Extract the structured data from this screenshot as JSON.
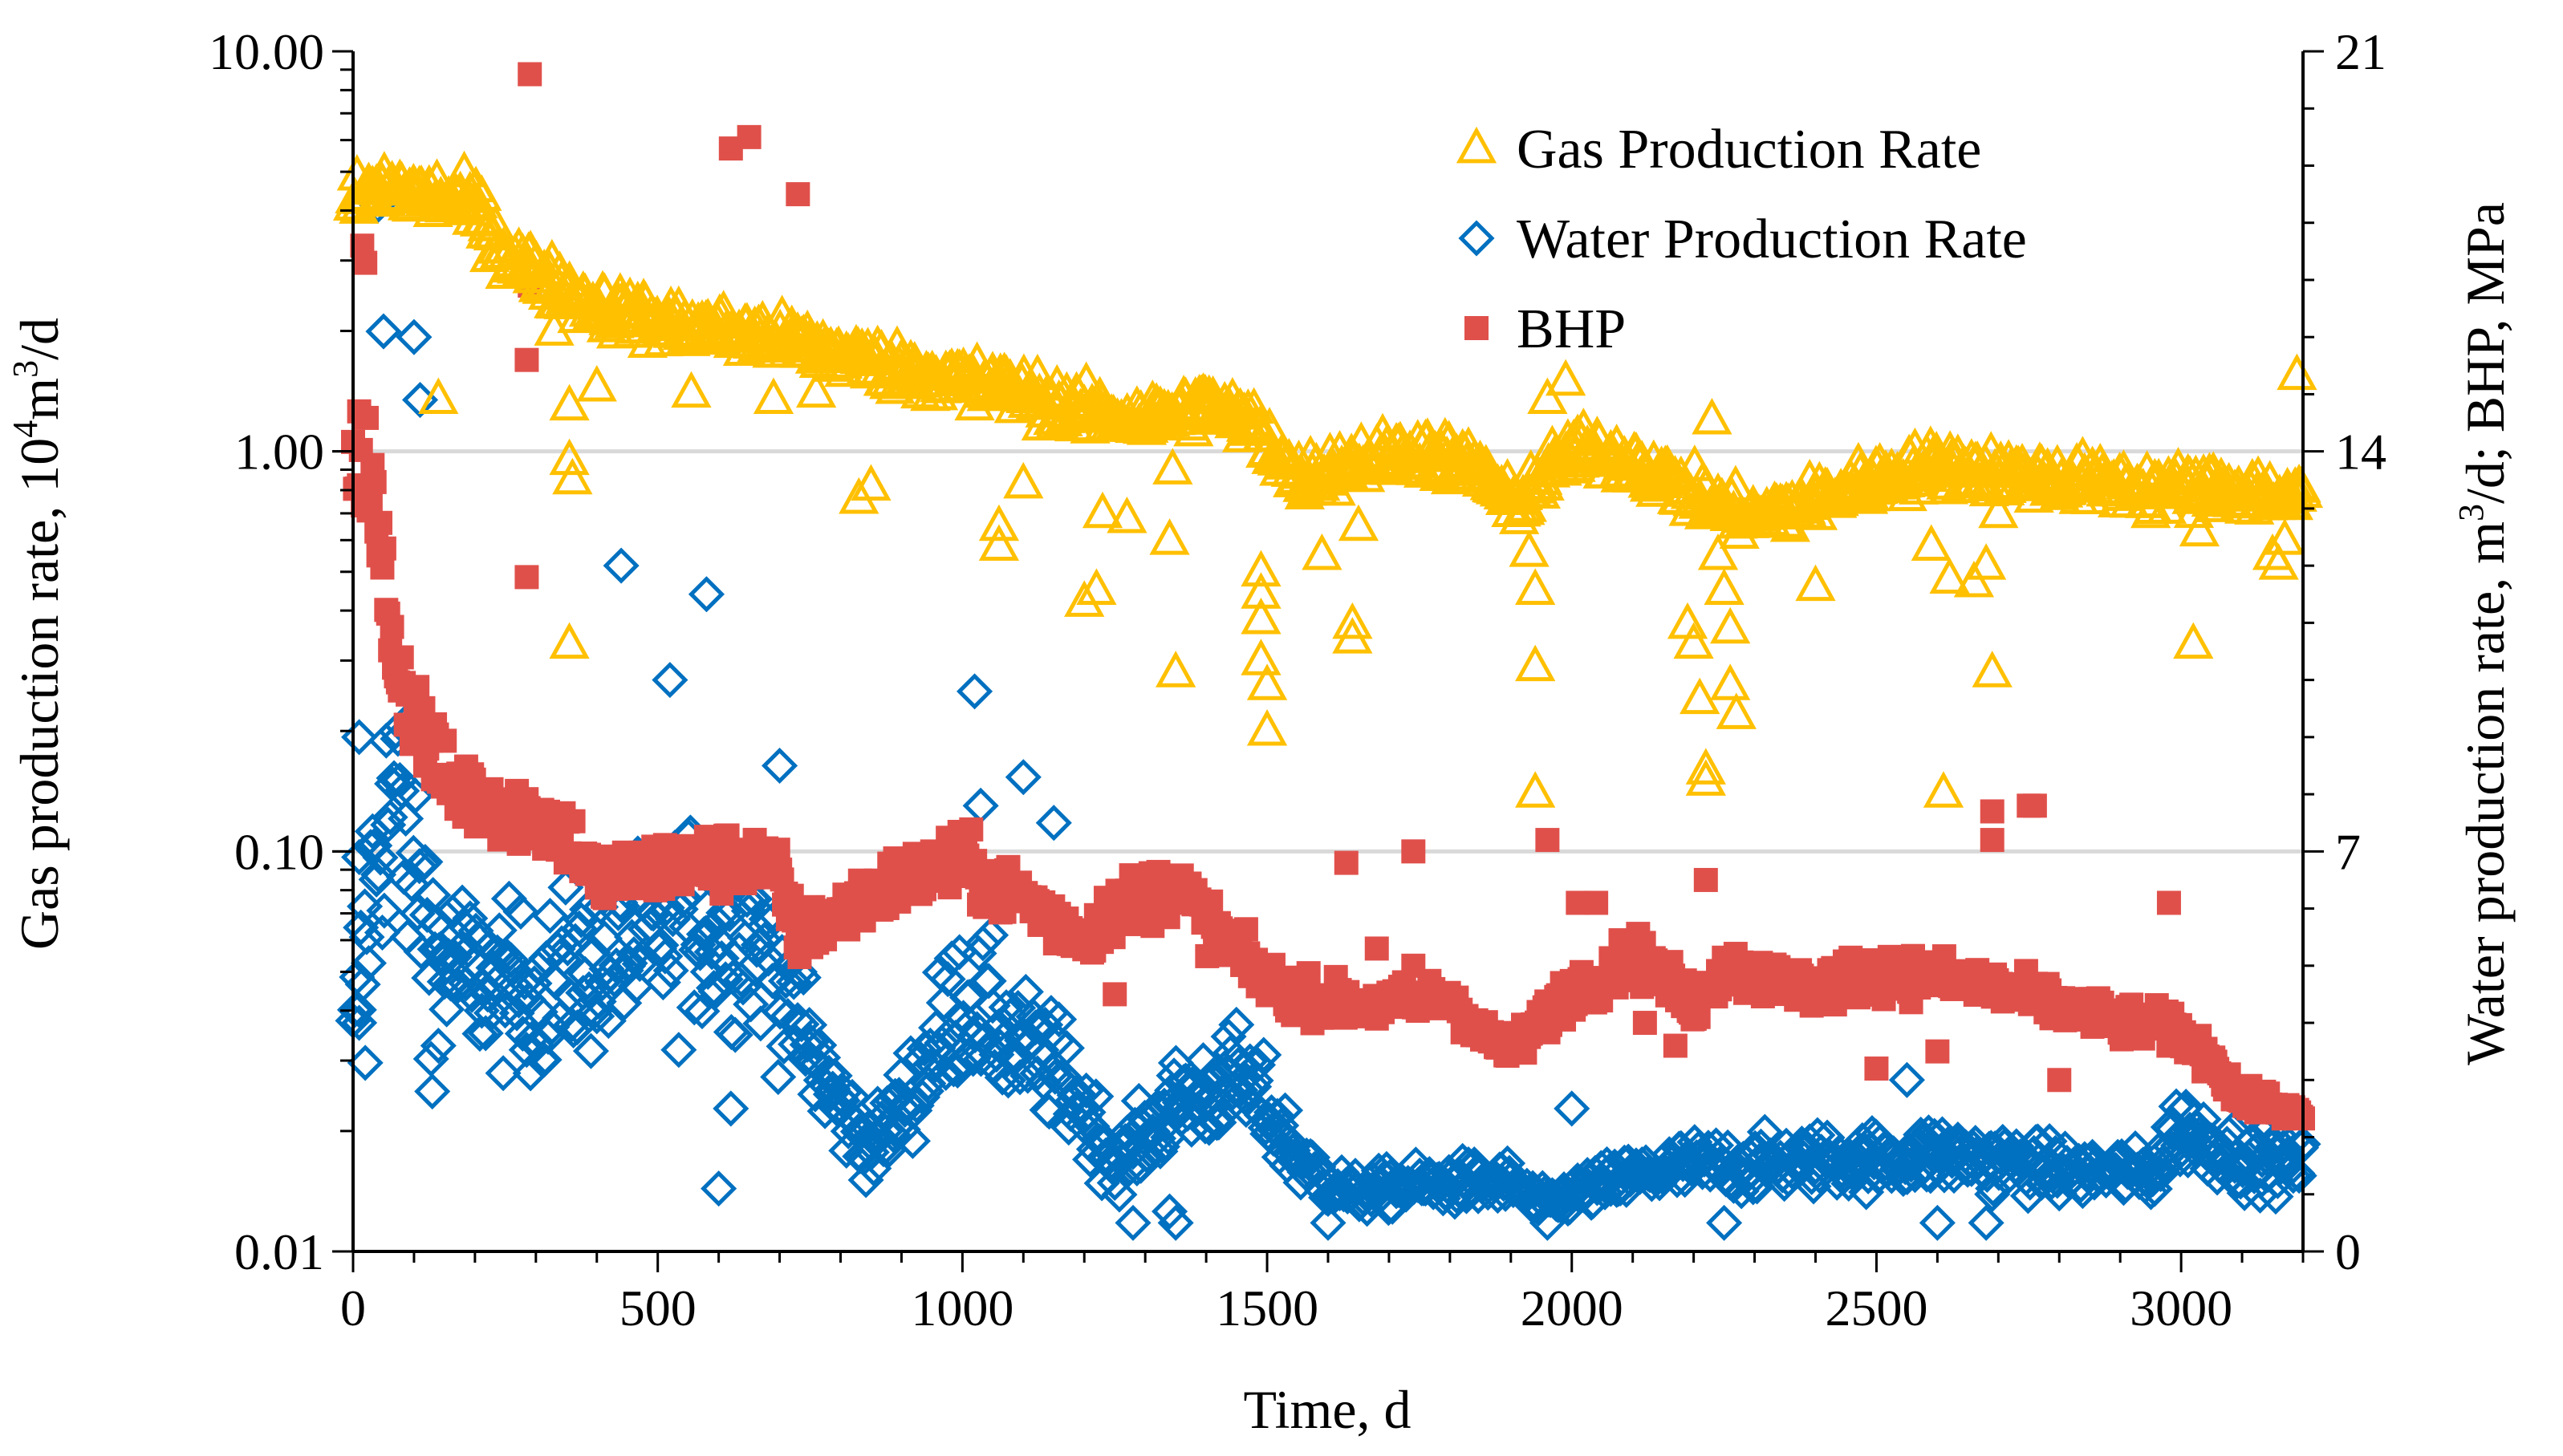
{
  "chart_data": {
    "type": "scatter",
    "xlabel": "Time, d",
    "ylabel_left": "Gas production rate, 10",
    "ylabel_left_sup": "4",
    "ylabel_left_suffix": "m",
    "ylabel_left_sup2": "3",
    "ylabel_left_end": "/d",
    "ylabel_right": "Water production rate, m",
    "ylabel_right_sup": "3",
    "ylabel_right_end": "/d; BHP, MPa",
    "xlim": [
      0,
      3200
    ],
    "x_ticks": [
      0,
      500,
      1000,
      1500,
      2000,
      2500,
      3000
    ],
    "x_tick_labels": [
      "0",
      "500",
      "1000",
      "1500",
      "2000",
      "2500",
      "3000"
    ],
    "left_axis": {
      "scale": "log",
      "ylim": [
        0.01,
        10
      ],
      "ticks": [
        0.01,
        0.1,
        1,
        10
      ],
      "tick_labels": [
        "0.01",
        "0.10",
        "1.00",
        "10.00"
      ]
    },
    "right_axis": {
      "scale": "linear",
      "ylim": [
        0,
        21
      ],
      "ticks": [
        0,
        7,
        14,
        21
      ],
      "tick_labels": [
        "0",
        "7",
        "14",
        "21"
      ]
    },
    "gridlines": [
      0.1,
      1
    ],
    "legend_position": "top-right",
    "series": [
      {
        "name": "Gas Production Rate",
        "axis": "left",
        "marker": "triangle-open",
        "color": "#FFC000",
        "trend": [
          [
            0,
            4.2
          ],
          [
            50,
            4.6
          ],
          [
            100,
            4.4
          ],
          [
            150,
            4.3
          ],
          [
            200,
            4.1
          ],
          [
            250,
            3.1
          ],
          [
            300,
            2.8
          ],
          [
            350,
            2.5
          ],
          [
            400,
            2.3
          ],
          [
            500,
            2.1
          ],
          [
            600,
            2.0
          ],
          [
            700,
            1.9
          ],
          [
            800,
            1.75
          ],
          [
            900,
            1.6
          ],
          [
            1000,
            1.5
          ],
          [
            1100,
            1.4
          ],
          [
            1200,
            1.25
          ],
          [
            1300,
            1.2
          ],
          [
            1400,
            1.3
          ],
          [
            1480,
            1.15
          ],
          [
            1550,
            0.85
          ],
          [
            1650,
            0.95
          ],
          [
            1750,
            1.0
          ],
          [
            1850,
            0.9
          ],
          [
            1900,
            0.72
          ],
          [
            1950,
            0.85
          ],
          [
            2000,
            1.0
          ],
          [
            2100,
            0.95
          ],
          [
            2200,
            0.78
          ],
          [
            2250,
            0.72
          ],
          [
            2300,
            0.68
          ],
          [
            2400,
            0.75
          ],
          [
            2500,
            0.85
          ],
          [
            2600,
            0.92
          ],
          [
            2700,
            0.88
          ],
          [
            2800,
            0.85
          ],
          [
            2900,
            0.82
          ],
          [
            3000,
            0.8
          ],
          [
            3100,
            0.8
          ],
          [
            3200,
            0.75
          ]
        ],
        "scatter_fraction": 0.09,
        "outliers": [
          [
            140,
            1.35
          ],
          [
            355,
            1.3
          ],
          [
            355,
            0.95
          ],
          [
            360,
            0.85
          ],
          [
            355,
            0.33
          ],
          [
            330,
            2.0
          ],
          [
            400,
            1.45
          ],
          [
            555,
            1.4
          ],
          [
            690,
            1.35
          ],
          [
            760,
            1.4
          ],
          [
            830,
            0.76
          ],
          [
            850,
            0.82
          ],
          [
            1020,
            1.3
          ],
          [
            1060,
            0.65
          ],
          [
            1060,
            0.58
          ],
          [
            1100,
            0.83
          ],
          [
            1200,
            0.42
          ],
          [
            1220,
            0.45
          ],
          [
            1230,
            0.7
          ],
          [
            1270,
            0.68
          ],
          [
            1340,
            0.6
          ],
          [
            1345,
            0.9
          ],
          [
            1350,
            0.28
          ],
          [
            1490,
            0.5
          ],
          [
            1490,
            0.44
          ],
          [
            1490,
            0.38
          ],
          [
            1490,
            0.3
          ],
          [
            1500,
            0.26
          ],
          [
            1500,
            0.2
          ],
          [
            1590,
            0.55
          ],
          [
            1640,
            0.37
          ],
          [
            1640,
            0.34
          ],
          [
            1650,
            0.65
          ],
          [
            1930,
            0.56
          ],
          [
            1940,
            0.45
          ],
          [
            1940,
            0.29
          ],
          [
            1940,
            0.14
          ],
          [
            1960,
            1.35
          ],
          [
            1990,
            1.5
          ],
          [
            2190,
            0.37
          ],
          [
            2200,
            0.33
          ],
          [
            2210,
            0.24
          ],
          [
            2220,
            0.16
          ],
          [
            2220,
            0.15
          ],
          [
            2230,
            1.2
          ],
          [
            2240,
            0.55
          ],
          [
            2250,
            0.45
          ],
          [
            2260,
            0.36
          ],
          [
            2260,
            0.26
          ],
          [
            2270,
            0.22
          ],
          [
            2400,
            0.46
          ],
          [
            2590,
            0.58
          ],
          [
            2610,
            0.14
          ],
          [
            2620,
            0.48
          ],
          [
            2660,
            0.47
          ],
          [
            2680,
            0.52
          ],
          [
            2690,
            0.28
          ],
          [
            2700,
            0.7
          ],
          [
            2950,
            0.7
          ],
          [
            3020,
            0.33
          ],
          [
            3030,
            0.63
          ],
          [
            3150,
            0.55
          ],
          [
            3160,
            0.52
          ],
          [
            3170,
            0.6
          ],
          [
            3190,
            1.55
          ]
        ]
      },
      {
        "name": "Water Production Rate",
        "axis": "right",
        "marker": "diamond-open",
        "color": "#0070C0",
        "trend": [
          [
            0,
            3.5
          ],
          [
            15,
            5.0
          ],
          [
            30,
            6.5
          ],
          [
            50,
            7.5
          ],
          [
            70,
            8.0
          ],
          [
            90,
            7.0
          ],
          [
            110,
            6.5
          ],
          [
            130,
            5.5
          ],
          [
            150,
            5.0
          ],
          [
            200,
            4.8
          ],
          [
            250,
            4.6
          ],
          [
            300,
            4.5
          ],
          [
            350,
            4.8
          ],
          [
            400,
            5.0
          ],
          [
            450,
            5.2
          ],
          [
            500,
            5.5
          ],
          [
            550,
            5.8
          ],
          [
            600,
            5.6
          ],
          [
            650,
            5.7
          ],
          [
            700,
            5.0
          ],
          [
            750,
            3.5
          ],
          [
            800,
            2.5
          ],
          [
            850,
            1.8
          ],
          [
            900,
            2.5
          ],
          [
            950,
            3.5
          ],
          [
            1000,
            4.5
          ],
          [
            1050,
            4.0
          ],
          [
            1100,
            3.5
          ],
          [
            1150,
            3.2
          ],
          [
            1200,
            2.5
          ],
          [
            1250,
            1.5
          ],
          [
            1300,
            2.0
          ],
          [
            1350,
            2.6
          ],
          [
            1400,
            2.8
          ],
          [
            1450,
            3.0
          ],
          [
            1500,
            2.5
          ],
          [
            1550,
            1.6
          ],
          [
            1600,
            1.2
          ],
          [
            1650,
            1.0
          ],
          [
            1700,
            1.1
          ],
          [
            1800,
            1.2
          ],
          [
            1900,
            1.2
          ],
          [
            1950,
            0.8
          ],
          [
            2000,
            1.0
          ],
          [
            2100,
            1.3
          ],
          [
            2200,
            1.5
          ],
          [
            2300,
            1.5
          ],
          [
            2400,
            1.6
          ],
          [
            2500,
            1.6
          ],
          [
            2600,
            1.7
          ],
          [
            2700,
            1.6
          ],
          [
            2800,
            1.4
          ],
          [
            2900,
            1.4
          ],
          [
            2950,
            1.3
          ],
          [
            3000,
            2.2
          ],
          [
            3100,
            1.6
          ],
          [
            3200,
            1.5
          ]
        ],
        "scatter_fraction": 0.3,
        "outliers": [
          [
            40,
            18.3
          ],
          [
            50,
            16.1
          ],
          [
            100,
            16.0
          ],
          [
            110,
            14.9
          ],
          [
            10,
            4.0
          ],
          [
            10,
            6.9
          ],
          [
            130,
            2.8
          ],
          [
            140,
            3.6
          ],
          [
            20,
            3.3
          ],
          [
            10,
            9.0
          ],
          [
            440,
            12.0
          ],
          [
            520,
            10.0
          ],
          [
            580,
            11.5
          ],
          [
            620,
            2.5
          ],
          [
            600,
            1.1
          ],
          [
            700,
            8.5
          ],
          [
            1020,
            9.8
          ],
          [
            1030,
            7.8
          ],
          [
            1100,
            8.3
          ],
          [
            1150,
            7.5
          ],
          [
            1250,
            1.2
          ],
          [
            1280,
            0.5
          ],
          [
            1340,
            0.7
          ],
          [
            1350,
            0.5
          ],
          [
            1600,
            0.5
          ],
          [
            1960,
            0.5
          ],
          [
            2000,
            2.5
          ],
          [
            2250,
            0.5
          ],
          [
            2600,
            0.5
          ],
          [
            2680,
            0.5
          ],
          [
            2690,
            1.0
          ],
          [
            2550,
            3.0
          ]
        ]
      },
      {
        "name": "BHP",
        "axis": "right",
        "marker": "square-filled",
        "color": "#E0504B",
        "trend": [
          [
            0,
            13.8
          ],
          [
            20,
            14.0
          ],
          [
            40,
            12.5
          ],
          [
            60,
            11.0
          ],
          [
            80,
            10.0
          ],
          [
            100,
            9.5
          ],
          [
            150,
            8.2
          ],
          [
            200,
            8.0
          ],
          [
            250,
            7.8
          ],
          [
            300,
            7.6
          ],
          [
            350,
            7.3
          ],
          [
            400,
            6.5
          ],
          [
            450,
            6.6
          ],
          [
            500,
            6.7
          ],
          [
            550,
            6.8
          ],
          [
            600,
            6.8
          ],
          [
            650,
            6.9
          ],
          [
            700,
            6.5
          ],
          [
            730,
            5.5
          ],
          [
            900,
            6.5
          ],
          [
            1000,
            6.8
          ],
          [
            1050,
            6.4
          ],
          [
            1100,
            6.2
          ],
          [
            1150,
            5.8
          ],
          [
            1200,
            5.5
          ],
          [
            1250,
            6.0
          ],
          [
            1300,
            6.2
          ],
          [
            1350,
            6.4
          ],
          [
            1400,
            5.8
          ],
          [
            1450,
            5.2
          ],
          [
            1500,
            4.7
          ],
          [
            1550,
            4.5
          ],
          [
            1600,
            4.4
          ],
          [
            1650,
            4.3
          ],
          [
            1700,
            4.3
          ],
          [
            1750,
            4.4
          ],
          [
            1800,
            4.5
          ],
          [
            1850,
            3.8
          ],
          [
            1900,
            3.5
          ],
          [
            1950,
            4.0
          ],
          [
            2000,
            4.6
          ],
          [
            2050,
            4.8
          ],
          [
            2100,
            5.2
          ],
          [
            2150,
            4.8
          ],
          [
            2200,
            4.3
          ],
          [
            2250,
            5.0
          ],
          [
            2300,
            4.8
          ],
          [
            2400,
            4.6
          ],
          [
            2500,
            4.9
          ],
          [
            2600,
            4.8
          ],
          [
            2700,
            4.6
          ],
          [
            2800,
            4.3
          ],
          [
            2900,
            4.0
          ],
          [
            2950,
            4.0
          ],
          [
            3000,
            3.8
          ],
          [
            3050,
            3.4
          ],
          [
            3100,
            2.6
          ],
          [
            3150,
            2.6
          ],
          [
            3200,
            2.3
          ]
        ],
        "scatter_fraction": 0.08,
        "outliers": [
          [
            10,
            14.7
          ],
          [
            15,
            17.6
          ],
          [
            20,
            17.3
          ],
          [
            290,
            20.6
          ],
          [
            290,
            16.9
          ],
          [
            285,
            15.6
          ],
          [
            285,
            11.8
          ],
          [
            620,
            19.3
          ],
          [
            650,
            19.5
          ],
          [
            730,
            18.5
          ],
          [
            1250,
            4.5
          ],
          [
            1630,
            6.8
          ],
          [
            1680,
            5.3
          ],
          [
            1740,
            7.0
          ],
          [
            1740,
            5.0
          ],
          [
            1960,
            7.2
          ],
          [
            2010,
            6.1
          ],
          [
            2040,
            6.1
          ],
          [
            2090,
            5.4
          ],
          [
            2120,
            4.0
          ],
          [
            2170,
            3.6
          ],
          [
            2220,
            6.5
          ],
          [
            2500,
            3.2
          ],
          [
            2600,
            3.5
          ],
          [
            2690,
            7.7
          ],
          [
            2690,
            7.2
          ],
          [
            2750,
            7.8
          ],
          [
            2760,
            7.8
          ],
          [
            2800,
            3.0
          ],
          [
            2980,
            6.1
          ]
        ]
      }
    ]
  }
}
